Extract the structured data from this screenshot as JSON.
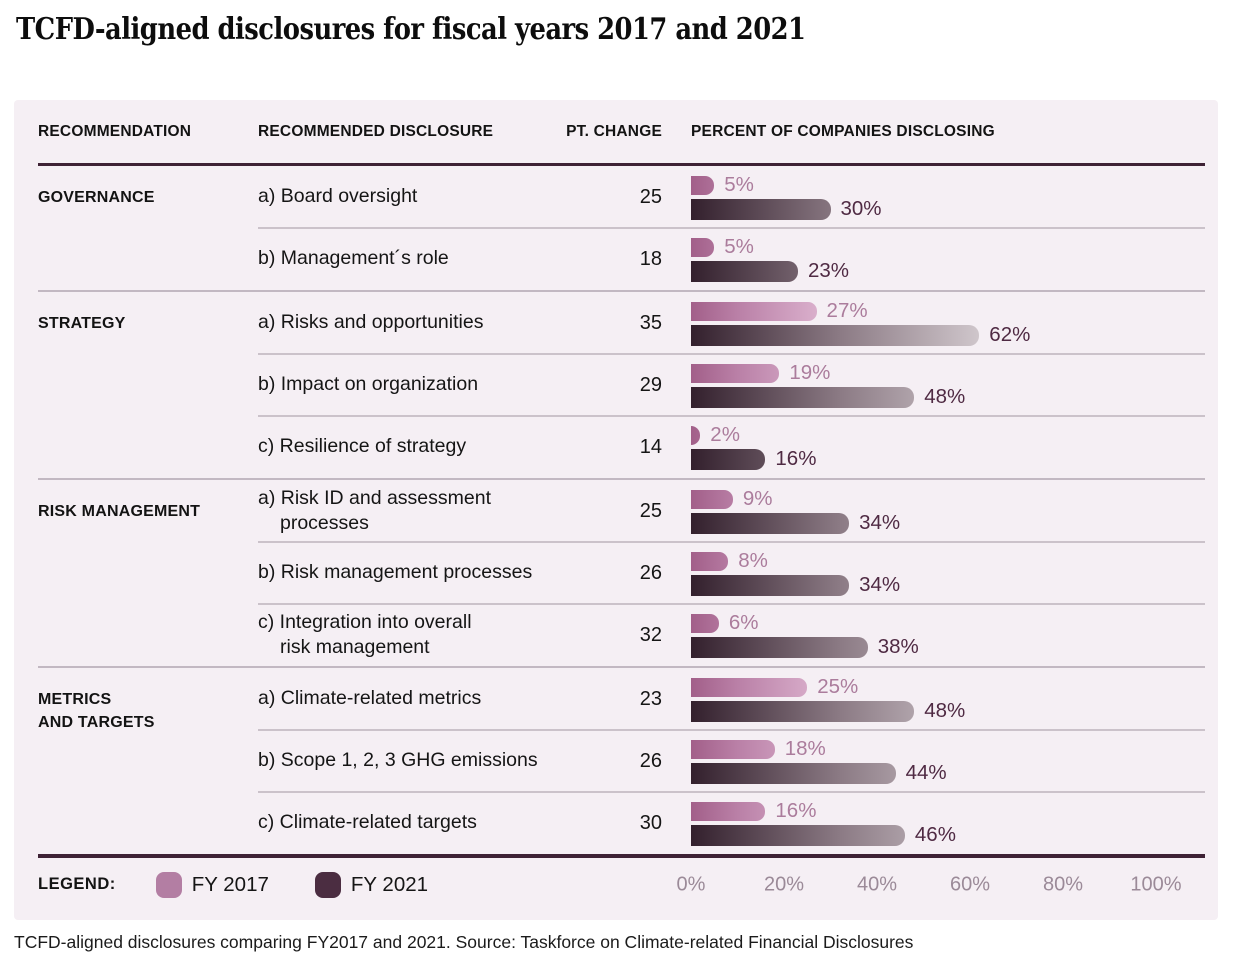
{
  "title": "TCFD-aligned disclosures for fiscal years 2017 and 2021",
  "table": {
    "headers": [
      "RECOMMENDATION",
      "RECOMMENDED DISCLOSURE",
      "PT. CHANGE",
      "PERCENT OF COMPANIES DISCLOSING"
    ]
  },
  "legend": {
    "label": "LEGEND:",
    "items": [
      {
        "name": "FY 2017",
        "color": "#b37ea3"
      },
      {
        "name": "FY 2021",
        "color": "#4b2d41"
      }
    ]
  },
  "axis": {
    "tick_labels": [
      "0%",
      "20%",
      "40%",
      "60%",
      "80%",
      "100%"
    ]
  },
  "caption": "TCFD-aligned disclosures comparing FY2017 and 2021. Source: Taskforce on Climate-related Financial Disclosures",
  "colors": {
    "panel_background": "#f5eff4",
    "thick_rule": "#3e2235",
    "thin_rule": "#cbc2ca",
    "fy2017_bar_start": "#a25f89",
    "fy2017_bar_end": "#e8c8dc",
    "fy2021_bar_start": "#33202d",
    "fy2021_bar_end": "#d0c7cc",
    "fy2017_value_label": "#ab7c9c",
    "fy2021_value_label": "#4f2a43",
    "axis_tick": "#9b8a98"
  },
  "chart_data": {
    "type": "bar",
    "orientation": "horizontal",
    "title": "TCFD-aligned disclosures for fiscal years 2017 and 2021",
    "xlabel": "Percent of companies disclosing",
    "xlim": [
      0,
      100
    ],
    "x_ticks": [
      0,
      20,
      40,
      60,
      80,
      100
    ],
    "grid": false,
    "legend_position": "bottom-left",
    "series_names": [
      "FY 2017",
      "FY 2021"
    ],
    "groups": [
      {
        "recommendation": "GOVERNANCE",
        "rows": [
          {
            "disclosure": "a) Board oversight",
            "pt_change": 25,
            "fy2017": 5,
            "fy2021": 30
          },
          {
            "disclosure": "b) Management´s role",
            "pt_change": 18,
            "fy2017": 5,
            "fy2021": 23
          }
        ]
      },
      {
        "recommendation": "STRATEGY",
        "rows": [
          {
            "disclosure": "a) Risks and opportunities",
            "pt_change": 35,
            "fy2017": 27,
            "fy2021": 62
          },
          {
            "disclosure": "b) Impact on organization",
            "pt_change": 29,
            "fy2017": 19,
            "fy2021": 48
          },
          {
            "disclosure": "c) Resilience of strategy",
            "pt_change": 14,
            "fy2017": 2,
            "fy2021": 16
          }
        ]
      },
      {
        "recommendation": "RISK MANAGEMENT",
        "rows": [
          {
            "disclosure": "a) Risk ID and assessment processes",
            "pt_change": 25,
            "fy2017": 9,
            "fy2021": 34
          },
          {
            "disclosure": "b) Risk management processes",
            "pt_change": 26,
            "fy2017": 8,
            "fy2021": 34
          },
          {
            "disclosure": "c) Integration into overall\nrisk management",
            "pt_change": 32,
            "fy2017": 6,
            "fy2021": 38
          }
        ]
      },
      {
        "recommendation": "METRICS\nAND TARGETS",
        "rows": [
          {
            "disclosure": "a) Climate-related metrics",
            "pt_change": 23,
            "fy2017": 25,
            "fy2021": 48
          },
          {
            "disclosure": "b) Scope 1, 2, 3 GHG emissions",
            "pt_change": 26,
            "fy2017": 18,
            "fy2021": 44
          },
          {
            "disclosure": "c) Climate-related targets",
            "pt_change": 30,
            "fy2017": 16,
            "fy2021": 46
          }
        ]
      }
    ]
  }
}
